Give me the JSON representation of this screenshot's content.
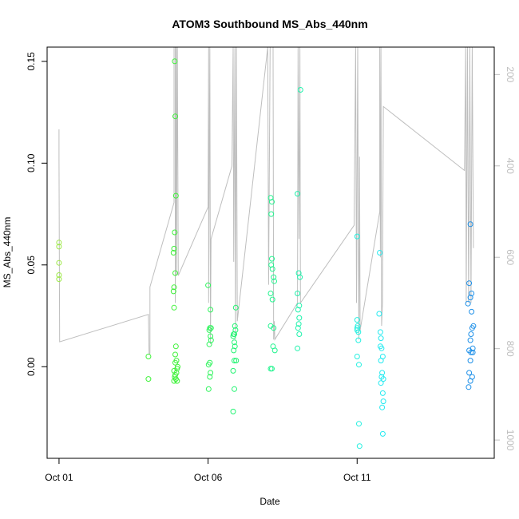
{
  "chart_data": {
    "type": "scatter",
    "title": "ATOM3 Southbound MS_Abs_440nm",
    "xlabel": "Date",
    "ylabel": "MS_Abs_440nm",
    "x_ticks": [
      {
        "label": "Oct 01",
        "value": 1
      },
      {
        "label": "Oct 06",
        "value": 6
      },
      {
        "label": "Oct 11",
        "value": 11
      }
    ],
    "y_ticks": [
      {
        "label": "0.00",
        "value": 0.0
      },
      {
        "label": "0.05",
        "value": 0.05
      },
      {
        "label": "0.10",
        "value": 0.1
      },
      {
        "label": "0.15",
        "value": 0.15
      }
    ],
    "y2_ticks": [
      {
        "label": "200",
        "value": 200
      },
      {
        "label": "400",
        "value": 400
      },
      {
        "label": "600",
        "value": 600
      },
      {
        "label": "800",
        "value": 800
      },
      {
        "label": "1000",
        "value": 1000
      }
    ],
    "xlim": [
      0.6,
      15.6
    ],
    "ylim": [
      -0.045,
      0.157
    ],
    "y2lim": [
      1040,
      140
    ],
    "point_color_scale": "days from Oct 01: yellow-green to blue",
    "series": [
      {
        "color": "#9ee84a",
        "points": [
          [
            1.0,
            0.061
          ],
          [
            1.0,
            0.059
          ],
          [
            1.0,
            0.051
          ],
          [
            1.0,
            0.045
          ],
          [
            1.0,
            0.043
          ]
        ]
      },
      {
        "color": "#3ff23a",
        "points": [
          [
            4.0,
            0.005
          ],
          [
            4.0,
            -0.006
          ],
          [
            4.88,
            0.15
          ],
          [
            4.9,
            0.123
          ],
          [
            4.92,
            0.084
          ],
          [
            4.88,
            0.066
          ],
          [
            4.86,
            0.058
          ],
          [
            4.84,
            0.056
          ],
          [
            4.9,
            0.046
          ],
          [
            4.86,
            0.039
          ],
          [
            4.84,
            0.037
          ],
          [
            4.86,
            0.029
          ],
          [
            4.92,
            0.01
          ],
          [
            4.9,
            0.006
          ],
          [
            4.94,
            0.003
          ],
          [
            4.9,
            0.002
          ],
          [
            4.86,
            -0.002
          ],
          [
            4.96,
            -0.001
          ],
          [
            4.98,
            0.0
          ],
          [
            4.9,
            -0.004
          ],
          [
            4.94,
            -0.003
          ],
          [
            4.88,
            -0.005
          ],
          [
            4.86,
            -0.007
          ],
          [
            4.92,
            -0.006
          ],
          [
            4.96,
            -0.007
          ]
        ]
      },
      {
        "color": "#2cf45a",
        "points": [
          [
            6.0,
            0.04
          ],
          [
            6.08,
            0.028
          ],
          [
            6.06,
            0.019
          ],
          [
            6.1,
            0.019
          ],
          [
            6.04,
            0.018
          ],
          [
            6.08,
            0.015
          ],
          [
            6.1,
            0.013
          ],
          [
            6.04,
            0.011
          ],
          [
            6.06,
            0.002
          ],
          [
            6.02,
            0.001
          ],
          [
            6.08,
            -0.003
          ],
          [
            6.06,
            -0.005
          ],
          [
            6.02,
            -0.011
          ]
        ]
      },
      {
        "color": "#22f472",
        "points": [
          [
            6.93,
            0.029
          ],
          [
            6.9,
            0.02
          ],
          [
            6.92,
            0.018
          ],
          [
            6.88,
            0.016
          ],
          [
            6.86,
            0.016
          ],
          [
            6.84,
            0.015
          ],
          [
            6.88,
            0.012
          ],
          [
            6.9,
            0.01
          ],
          [
            6.86,
            0.008
          ],
          [
            6.88,
            0.003
          ],
          [
            6.94,
            0.003
          ],
          [
            6.84,
            -0.002
          ],
          [
            6.88,
            -0.011
          ],
          [
            6.84,
            -0.022
          ]
        ]
      },
      {
        "color": "#21f48e",
        "points": [
          [
            8.1,
            0.083
          ],
          [
            8.14,
            0.081
          ],
          [
            8.12,
            0.075
          ],
          [
            8.14,
            0.053
          ],
          [
            8.12,
            0.05
          ],
          [
            8.16,
            0.048
          ],
          [
            8.2,
            0.044
          ],
          [
            8.22,
            0.042
          ],
          [
            8.1,
            0.036
          ],
          [
            8.16,
            0.033
          ],
          [
            8.1,
            0.02
          ],
          [
            8.2,
            0.019
          ],
          [
            8.18,
            0.01
          ],
          [
            8.24,
            0.008
          ],
          [
            8.14,
            -0.001
          ],
          [
            8.1,
            -0.001
          ]
        ]
      },
      {
        "color": "#1ff2ac",
        "points": [
          [
            9.1,
            0.136
          ],
          [
            9.0,
            0.085
          ],
          [
            9.04,
            0.046
          ],
          [
            9.08,
            0.044
          ],
          [
            9.0,
            0.036
          ],
          [
            9.06,
            0.03
          ],
          [
            9.02,
            0.028
          ],
          [
            9.06,
            0.024
          ],
          [
            9.04,
            0.021
          ],
          [
            9.02,
            0.019
          ],
          [
            9.06,
            0.016
          ],
          [
            9.0,
            0.009
          ]
        ]
      },
      {
        "color": "#23f0e0",
        "points": [
          [
            11.0,
            0.064
          ],
          [
            11.0,
            0.023
          ],
          [
            11.02,
            0.02
          ],
          [
            11.0,
            0.019
          ],
          [
            11.0,
            0.018
          ],
          [
            11.04,
            0.017
          ],
          [
            11.04,
            0.013
          ],
          [
            11.0,
            0.005
          ],
          [
            11.06,
            0.001
          ],
          [
            11.06,
            -0.028
          ],
          [
            11.08,
            -0.039
          ]
        ]
      },
      {
        "color": "#24eaf0",
        "points": [
          [
            11.76,
            0.056
          ],
          [
            11.74,
            0.026
          ],
          [
            11.78,
            0.017
          ],
          [
            11.8,
            0.014
          ],
          [
            11.78,
            0.01
          ],
          [
            11.82,
            0.009
          ],
          [
            11.86,
            0.005
          ],
          [
            11.8,
            0.003
          ],
          [
            11.84,
            -0.003
          ],
          [
            11.82,
            -0.005
          ],
          [
            11.88,
            -0.006
          ],
          [
            11.8,
            -0.008
          ],
          [
            11.86,
            -0.013
          ],
          [
            11.88,
            -0.017
          ],
          [
            11.84,
            -0.02
          ],
          [
            11.86,
            -0.033
          ]
        ]
      },
      {
        "color": "#1e90e8",
        "points": [
          [
            14.8,
            0.07
          ],
          [
            14.76,
            0.041
          ],
          [
            14.84,
            0.036
          ],
          [
            14.8,
            0.034
          ],
          [
            14.72,
            0.031
          ],
          [
            14.84,
            0.027
          ],
          [
            14.9,
            0.02
          ],
          [
            14.86,
            0.019
          ],
          [
            14.82,
            0.016
          ],
          [
            14.8,
            0.013
          ],
          [
            14.88,
            0.009
          ],
          [
            14.76,
            0.008
          ],
          [
            14.82,
            0.007
          ],
          [
            14.88,
            0.007
          ],
          [
            14.8,
            0.003
          ],
          [
            14.76,
            -0.003
          ],
          [
            14.86,
            -0.005
          ],
          [
            14.8,
            -0.007
          ],
          [
            14.74,
            -0.01
          ]
        ]
      }
    ],
    "altitude_trace": {
      "color": "#bebebe",
      "axis": "right",
      "points": [
        [
          1.0,
          320
        ],
        [
          1.0,
          385
        ],
        [
          1.02,
          785
        ],
        [
          4.0,
          725
        ],
        [
          4.02,
          812
        ],
        [
          4.05,
          810
        ],
        [
          4.05,
          665
        ],
        [
          4.86,
          480
        ],
        [
          4.86,
          140
        ],
        [
          4.9,
          140
        ],
        [
          4.9,
          700
        ],
        [
          4.94,
          140
        ],
        [
          4.94,
          640
        ],
        [
          4.97,
          140
        ],
        [
          5.0,
          640
        ],
        [
          6.0,
          490
        ],
        [
          6.02,
          140
        ],
        [
          6.02,
          700
        ],
        [
          6.06,
          140
        ],
        [
          6.08,
          790
        ],
        [
          6.1,
          560
        ],
        [
          6.8,
          400
        ],
        [
          6.84,
          140
        ],
        [
          6.86,
          610
        ],
        [
          6.9,
          140
        ],
        [
          6.92,
          780
        ],
        [
          6.95,
          140
        ],
        [
          6.98,
          740
        ],
        [
          8.0,
          140
        ],
        [
          8.03,
          660
        ],
        [
          8.08,
          140
        ],
        [
          8.18,
          140
        ],
        [
          8.2,
          780
        ],
        [
          8.22,
          740
        ],
        [
          8.24,
          780
        ],
        [
          9.0,
          700
        ],
        [
          9.02,
          140
        ],
        [
          9.05,
          560
        ],
        [
          9.08,
          140
        ],
        [
          9.1,
          700
        ],
        [
          10.9,
          530
        ],
        [
          10.95,
          140
        ],
        [
          10.98,
          700
        ],
        [
          11.02,
          140
        ],
        [
          11.04,
          580
        ],
        [
          11.06,
          780
        ],
        [
          11.08,
          380
        ],
        [
          11.1,
          760
        ],
        [
          11.76,
          500
        ],
        [
          11.76,
          140
        ],
        [
          11.78,
          600
        ],
        [
          11.8,
          140
        ],
        [
          11.82,
          750
        ],
        [
          11.85,
          700
        ],
        [
          11.88,
          270
        ],
        [
          14.6,
          410
        ],
        [
          14.64,
          140
        ],
        [
          14.66,
          700
        ],
        [
          14.7,
          140
        ],
        [
          14.74,
          700
        ],
        [
          14.78,
          140
        ],
        [
          14.82,
          700
        ],
        [
          14.86,
          140
        ],
        [
          14.9,
          580
        ]
      ]
    }
  }
}
